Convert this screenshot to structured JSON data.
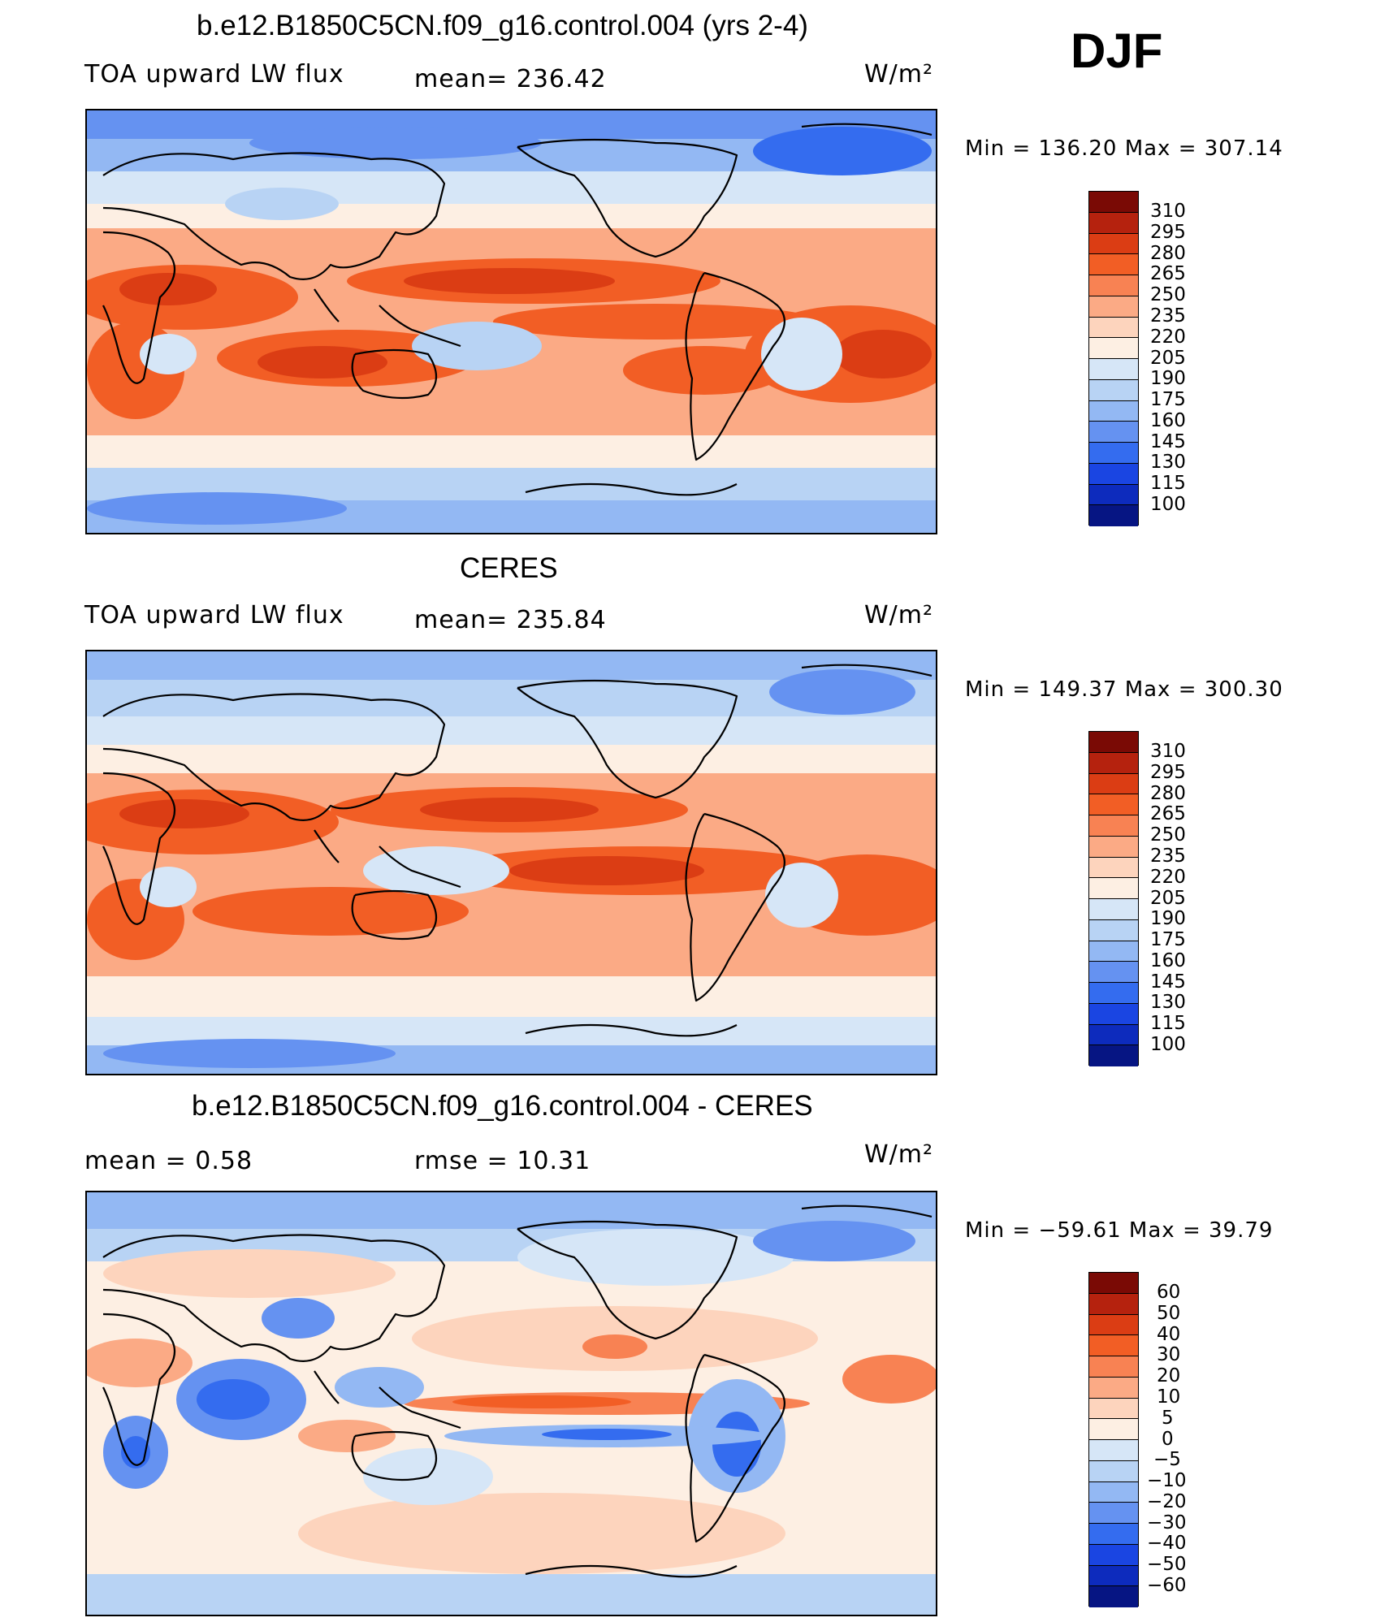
{
  "season": "DJF",
  "units_label": "W/m²",
  "panels": [
    {
      "title": "b.e12.B1850C5CN.f09_g16.control.004 (yrs 2-4)",
      "variable": "TOA upward LW flux",
      "stat": "mean= 236.42",
      "minmax": "Min  =  136.20  Max  =  307.14",
      "colorbar": {
        "labels": [
          "310",
          "295",
          "280",
          "265",
          "250",
          "235",
          "220",
          "205",
          "190",
          "175",
          "160",
          "145",
          "130",
          "115",
          "100"
        ],
        "colors": [
          "#7a0a05",
          "#b5220e",
          "#db3d14",
          "#f25e25",
          "#f88253",
          "#fbaa85",
          "#fdd4bd",
          "#fdefe3",
          "#d6e6f7",
          "#b8d3f4",
          "#93b8f3",
          "#6592f1",
          "#346cef",
          "#1a45e2",
          "#0d2bbd",
          "#061583"
        ]
      },
      "chart_data": {
        "type": "heatmap",
        "projection": "cylindrical equidistant, centred on 180°",
        "variable": "TOA upward LW flux",
        "units": "W/m2",
        "mean": 236.42,
        "min": 136.2,
        "max": 307.14,
        "contour_levels": [
          100,
          115,
          130,
          145,
          160,
          175,
          190,
          205,
          220,
          235,
          250,
          265,
          280,
          295,
          310
        ]
      }
    },
    {
      "title": "CERES",
      "variable": "TOA upward LW flux",
      "stat": "mean= 235.84",
      "minmax": "Min  =  149.37  Max  =  300.30",
      "colorbar": {
        "labels": [
          "310",
          "295",
          "280",
          "265",
          "250",
          "235",
          "220",
          "205",
          "190",
          "175",
          "160",
          "145",
          "130",
          "115",
          "100"
        ],
        "colors": [
          "#7a0a05",
          "#b5220e",
          "#db3d14",
          "#f25e25",
          "#f88253",
          "#fbaa85",
          "#fdd4bd",
          "#fdefe3",
          "#d6e6f7",
          "#b8d3f4",
          "#93b8f3",
          "#6592f1",
          "#346cef",
          "#1a45e2",
          "#0d2bbd",
          "#061583"
        ]
      },
      "chart_data": {
        "type": "heatmap",
        "projection": "cylindrical equidistant, centred on 180°",
        "variable": "TOA upward LW flux",
        "units": "W/m2",
        "mean": 235.84,
        "min": 149.37,
        "max": 300.3,
        "contour_levels": [
          100,
          115,
          130,
          145,
          160,
          175,
          190,
          205,
          220,
          235,
          250,
          265,
          280,
          295,
          310
        ]
      }
    },
    {
      "title": "b.e12.B1850C5CN.f09_g16.control.004 - CERES",
      "stat_left": "mean =     0.58",
      "stat": "rmse =    10.31",
      "minmax": "Min  = −59.61  Max  =    39.79",
      "colorbar": {
        "labels": [
          "60",
          "50",
          "40",
          "30",
          "20",
          "10",
          "5",
          "0",
          "−5",
          "−10",
          "−20",
          "−30",
          "−40",
          "−50",
          "−60"
        ],
        "colors": [
          "#7a0a05",
          "#b5220e",
          "#db3d14",
          "#f25e25",
          "#f88253",
          "#fbaa85",
          "#fdd4bd",
          "#fdefe3",
          "#d6e6f7",
          "#b8d3f4",
          "#93b8f3",
          "#6592f1",
          "#346cef",
          "#1a45e2",
          "#0d2bbd",
          "#061583"
        ]
      },
      "chart_data": {
        "type": "heatmap",
        "projection": "cylindrical equidistant, centred on 180°",
        "variable": "TOA upward LW flux difference (model - CERES)",
        "units": "W/m2",
        "mean": 0.58,
        "rmse": 10.31,
        "min": -59.61,
        "max": 39.79,
        "contour_levels": [
          -60,
          -50,
          -40,
          -30,
          -20,
          -10,
          -5,
          0,
          5,
          10,
          20,
          30,
          40,
          50,
          60
        ]
      }
    }
  ]
}
